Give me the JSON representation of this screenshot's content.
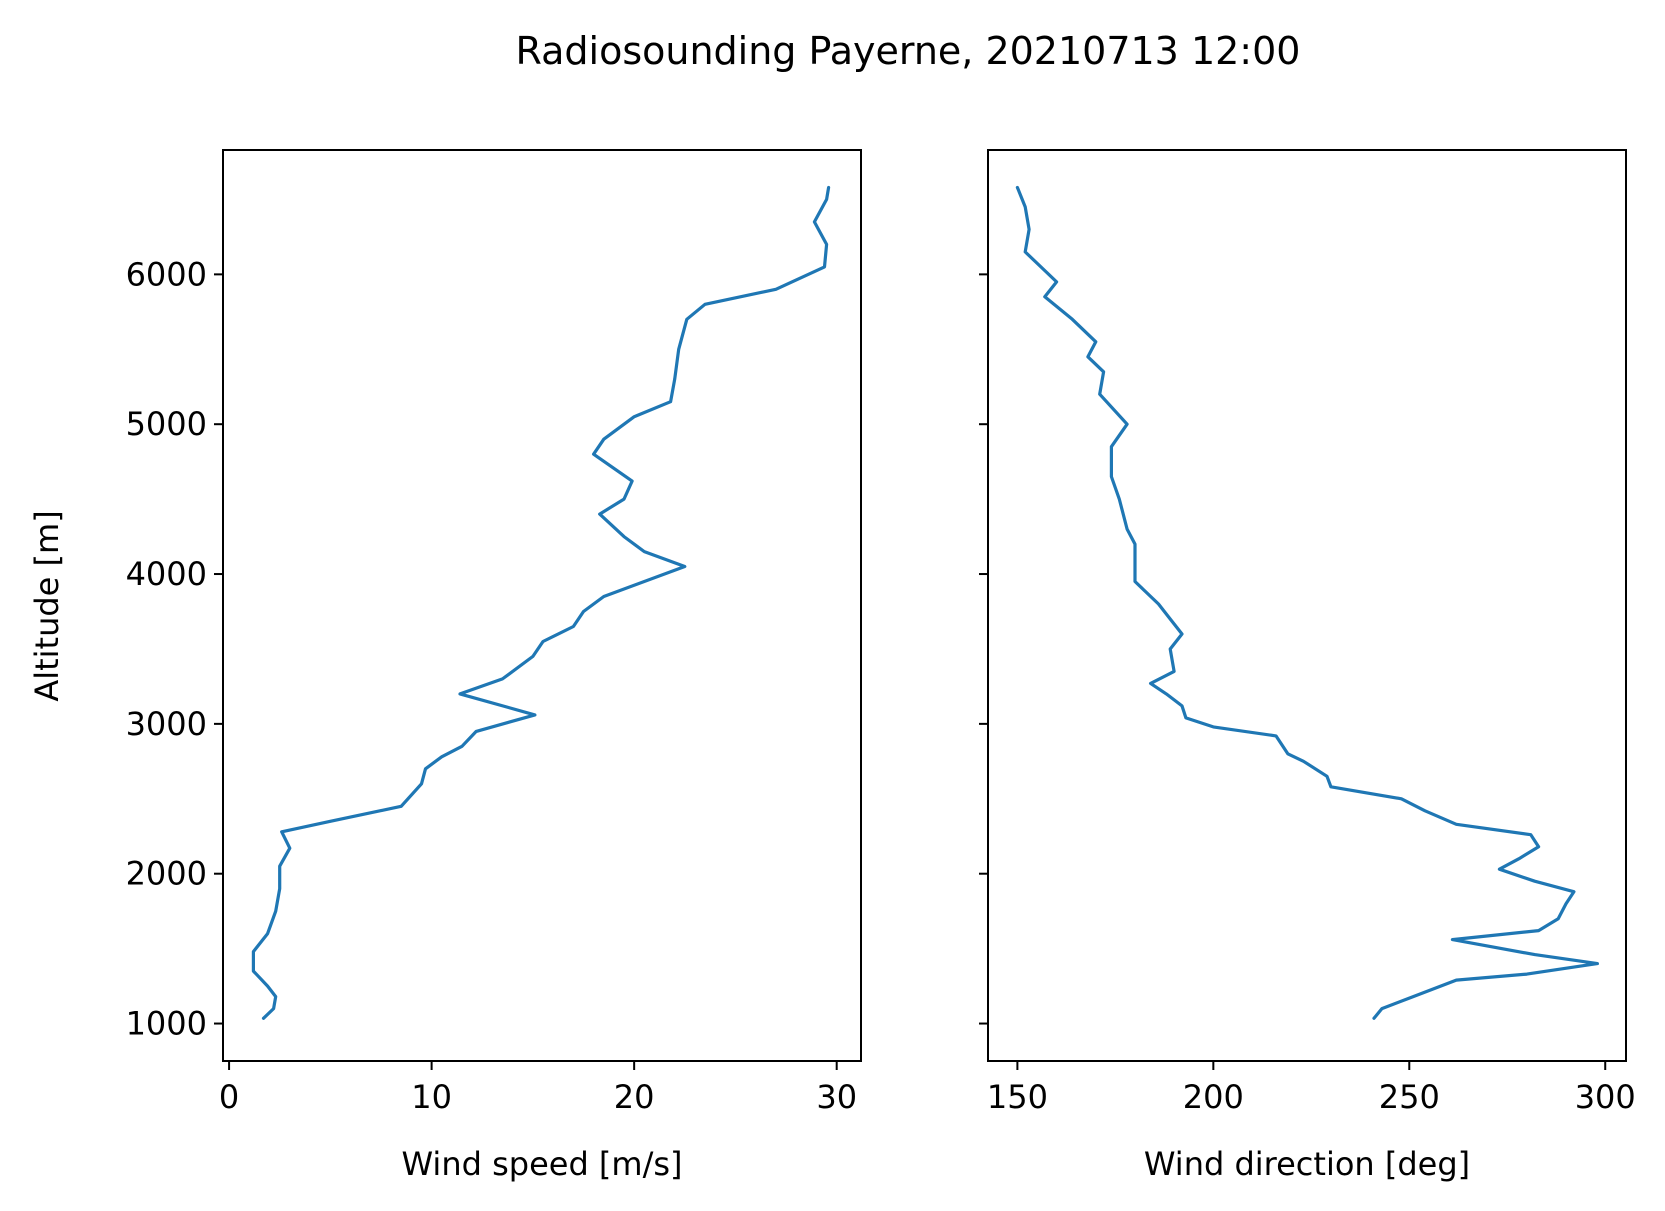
{
  "title": "Radiosounding Payerne, 20210713 12:00",
  "line_color": "#1f77b4",
  "chart_data": [
    {
      "type": "line",
      "xlabel": "Wind speed [m/s]",
      "ylabel": "Altitude [m]",
      "xlim": [
        -0.3,
        31.2
      ],
      "ylim": [
        750,
        6830
      ],
      "xticks": [
        0,
        10,
        20,
        30
      ],
      "yticks": [
        1000,
        2000,
        3000,
        4000,
        5000,
        6000
      ],
      "series": [
        {
          "values": [
            [
              1.7,
              1035
            ],
            [
              2.2,
              1100
            ],
            [
              2.3,
              1180
            ],
            [
              1.9,
              1250
            ],
            [
              1.2,
              1350
            ],
            [
              1.2,
              1480
            ],
            [
              1.9,
              1600
            ],
            [
              2.3,
              1750
            ],
            [
              2.5,
              1900
            ],
            [
              2.5,
              2050
            ],
            [
              3.0,
              2170
            ],
            [
              2.6,
              2280
            ],
            [
              5.0,
              2350
            ],
            [
              8.5,
              2450
            ],
            [
              9.5,
              2600
            ],
            [
              9.7,
              2700
            ],
            [
              10.5,
              2780
            ],
            [
              11.5,
              2850
            ],
            [
              12.2,
              2950
            ],
            [
              15.1,
              3060
            ],
            [
              11.4,
              3200
            ],
            [
              13.5,
              3300
            ],
            [
              15.0,
              3450
            ],
            [
              15.5,
              3550
            ],
            [
              17.0,
              3650
            ],
            [
              17.5,
              3750
            ],
            [
              18.5,
              3850
            ],
            [
              22.5,
              4050
            ],
            [
              20.5,
              4150
            ],
            [
              19.5,
              4250
            ],
            [
              18.3,
              4400
            ],
            [
              19.5,
              4500
            ],
            [
              19.9,
              4620
            ],
            [
              18.0,
              4800
            ],
            [
              18.5,
              4900
            ],
            [
              20.0,
              5050
            ],
            [
              21.8,
              5150
            ],
            [
              22.0,
              5300
            ],
            [
              22.2,
              5500
            ],
            [
              22.6,
              5700
            ],
            [
              23.5,
              5800
            ],
            [
              27.0,
              5900
            ],
            [
              29.4,
              6050
            ],
            [
              29.5,
              6200
            ],
            [
              28.9,
              6350
            ],
            [
              29.5,
              6500
            ],
            [
              29.6,
              6580
            ]
          ]
        }
      ]
    },
    {
      "type": "line",
      "xlabel": "Wind direction [deg]",
      "ylabel": "",
      "xlim": [
        142.5,
        305.3
      ],
      "ylim": [
        750,
        6830
      ],
      "xticks": [
        150,
        200,
        250,
        300
      ],
      "yticks": [
        1000,
        2000,
        3000,
        4000,
        5000,
        6000
      ],
      "series": [
        {
          "values": [
            [
              241,
              1035
            ],
            [
              243,
              1100
            ],
            [
              250,
              1170
            ],
            [
              256,
              1230
            ],
            [
              262,
              1290
            ],
            [
              280,
              1330
            ],
            [
              298,
              1400
            ],
            [
              282,
              1460
            ],
            [
              261,
              1560
            ],
            [
              283,
              1620
            ],
            [
              288,
              1700
            ],
            [
              290,
              1800
            ],
            [
              292,
              1880
            ],
            [
              282,
              1950
            ],
            [
              273,
              2030
            ],
            [
              278,
              2100
            ],
            [
              283,
              2180
            ],
            [
              281,
              2260
            ],
            [
              262,
              2330
            ],
            [
              254,
              2420
            ],
            [
              248,
              2500
            ],
            [
              230,
              2580
            ],
            [
              229,
              2650
            ],
            [
              223,
              2750
            ],
            [
              219,
              2800
            ],
            [
              216,
              2920
            ],
            [
              200,
              2980
            ],
            [
              193,
              3040
            ],
            [
              192,
              3120
            ],
            [
              188,
              3200
            ],
            [
              184,
              3270
            ],
            [
              190,
              3350
            ],
            [
              189,
              3500
            ],
            [
              192,
              3600
            ],
            [
              189,
              3700
            ],
            [
              186,
              3800
            ],
            [
              180,
              3950
            ],
            [
              180,
              4200
            ],
            [
              178,
              4300
            ],
            [
              176,
              4500
            ],
            [
              174,
              4650
            ],
            [
              174,
              4850
            ],
            [
              178,
              5000
            ],
            [
              171,
              5200
            ],
            [
              172,
              5350
            ],
            [
              168,
              5450
            ],
            [
              170,
              5550
            ],
            [
              164,
              5700
            ],
            [
              157,
              5850
            ],
            [
              160,
              5950
            ],
            [
              156,
              6050
            ],
            [
              152,
              6150
            ],
            [
              153,
              6300
            ],
            [
              152,
              6450
            ],
            [
              150,
              6580
            ]
          ]
        }
      ]
    }
  ]
}
